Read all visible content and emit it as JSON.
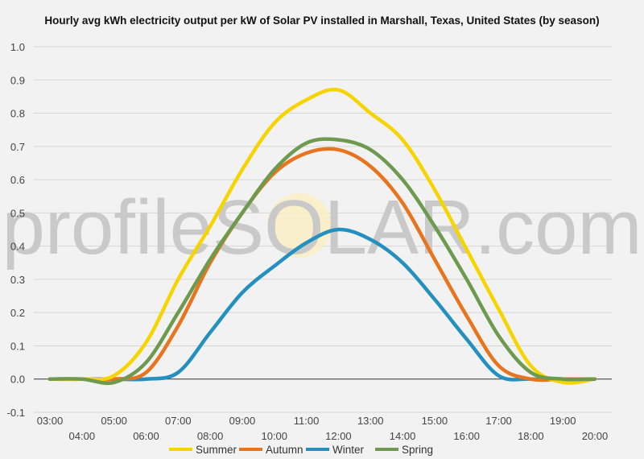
{
  "chart_data": {
    "type": "line",
    "title": "Hourly avg kWh electricity output per kW of Solar PV installed in Marshall, Texas, United States (by season)",
    "watermark": "profileSOLAR.com",
    "x": [
      "03:00",
      "04:00",
      "05:00",
      "06:00",
      "07:00",
      "08:00",
      "09:00",
      "10:00",
      "11:00",
      "12:00",
      "13:00",
      "14:00",
      "15:00",
      "16:00",
      "17:00",
      "18:00",
      "19:00",
      "20:00"
    ],
    "xlabel": "",
    "ylabel": "",
    "ylim": [
      -0.1,
      1.0
    ],
    "yticks": [
      "1.0",
      "0.9",
      "0.8",
      "0.7",
      "0.6",
      "0.5",
      "0.4",
      "0.3",
      "0.2",
      "0.1",
      "0.0",
      "-0.1"
    ],
    "grid": true,
    "legend_position": "bottom",
    "series": [
      {
        "name": "Summer",
        "color": "#f5d400",
        "values": [
          0.0,
          0.0,
          0.01,
          0.11,
          0.3,
          0.46,
          0.63,
          0.77,
          0.84,
          0.87,
          0.8,
          0.72,
          0.57,
          0.39,
          0.21,
          0.04,
          -0.01,
          0.0
        ]
      },
      {
        "name": "Autumn",
        "color": "#e8741e",
        "values": [
          0.0,
          0.0,
          0.0,
          0.02,
          0.16,
          0.35,
          0.5,
          0.62,
          0.68,
          0.69,
          0.64,
          0.53,
          0.36,
          0.19,
          0.04,
          0.0,
          0.0,
          0.0
        ]
      },
      {
        "name": "Winter",
        "color": "#2490c0",
        "values": [
          0.0,
          0.0,
          0.0,
          0.0,
          0.02,
          0.14,
          0.26,
          0.34,
          0.41,
          0.45,
          0.42,
          0.35,
          0.24,
          0.12,
          0.01,
          0.0,
          0.0,
          0.0
        ]
      },
      {
        "name": "Spring",
        "color": "#6d9a4e",
        "values": [
          0.0,
          0.0,
          -0.01,
          0.05,
          0.2,
          0.36,
          0.5,
          0.63,
          0.71,
          0.72,
          0.69,
          0.6,
          0.46,
          0.3,
          0.13,
          0.02,
          0.0,
          0.0
        ]
      }
    ]
  }
}
